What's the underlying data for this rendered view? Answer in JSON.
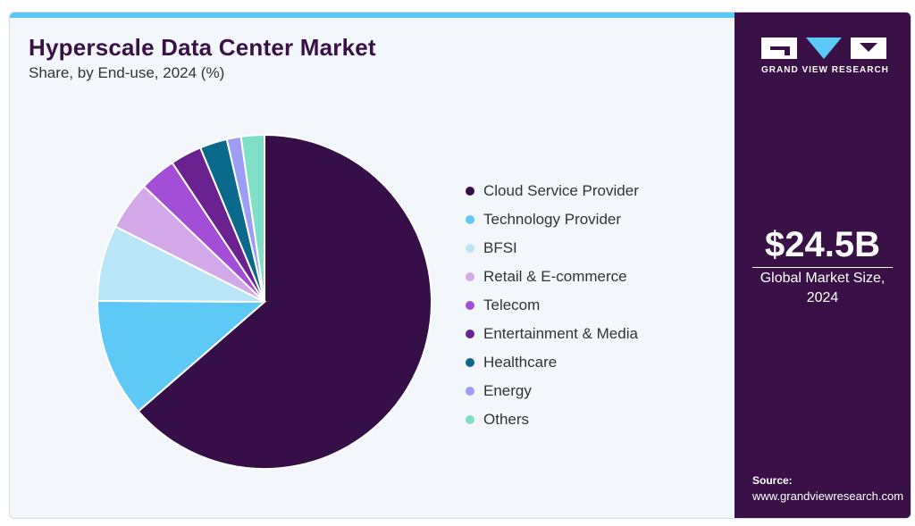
{
  "title": "Hyperscale Data Center Market",
  "subtitle": "Share, by End-use, 2024 (%)",
  "brand": {
    "name": "GRAND VIEW RESEARCH",
    "logo_icon": "gvr-logo-icon"
  },
  "market": {
    "value": "$24.5B",
    "label_line1": "Global Market Size,",
    "label_line2": "2024"
  },
  "source": {
    "title": "Source:",
    "url": "www.grandviewresearch.com"
  },
  "colors": {
    "accent_bar": "#5bc8f5",
    "side_panel": "#3a1147"
  },
  "chart_data": {
    "type": "pie",
    "title": "Hyperscale Data Center Market",
    "start_angle_deg": 0,
    "direction": "clockwise",
    "legend_position": "right",
    "series": [
      {
        "name": "Cloud Service Provider",
        "value": 64.9,
        "color": "#360e48"
      },
      {
        "name": "Technology Provider",
        "value": 11.7,
        "color": "#5ec9f6"
      },
      {
        "name": "BFSI",
        "value": 7.5,
        "color": "#b9e6f7"
      },
      {
        "name": "Retail & E-commerce",
        "value": 4.8,
        "color": "#d4a9e9"
      },
      {
        "name": "Telecom",
        "value": 3.6,
        "color": "#a34ed7"
      },
      {
        "name": "Entertainment & Media",
        "value": 3.1,
        "color": "#6a2290"
      },
      {
        "name": "Healthcare",
        "value": 2.7,
        "color": "#0b6a8b"
      },
      {
        "name": "Energy",
        "value": 1.4,
        "color": "#9d9df5"
      },
      {
        "name": "Others",
        "value": 2.3,
        "color": "#7fdfc6"
      }
    ]
  }
}
